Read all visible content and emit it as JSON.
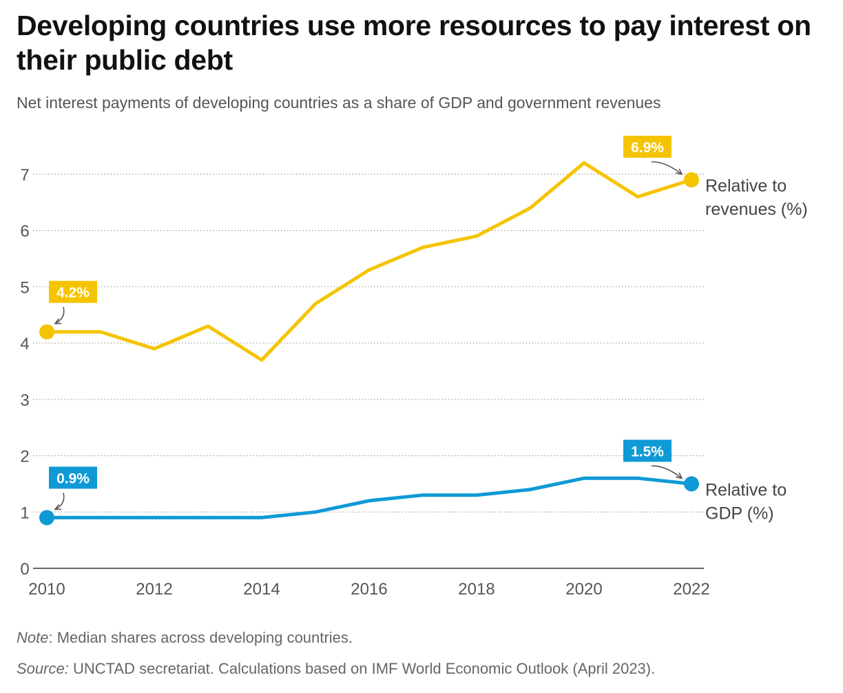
{
  "title": "Developing countries use more resources to pay interest on their public debt",
  "subtitle": "Net interest payments of developing countries as a share of GDP and government revenues",
  "note": {
    "label": "Note",
    "text": ": Median shares across developing countries."
  },
  "source": {
    "label": "Source:",
    "text": " UNCTAD secretariat. Calculations based on IMF World Economic Outlook (April 2023)."
  },
  "chart_data": {
    "type": "line",
    "x": [
      2010,
      2011,
      2012,
      2013,
      2014,
      2015,
      2016,
      2017,
      2018,
      2019,
      2020,
      2021,
      2022
    ],
    "x_ticks": [
      "2010",
      "2012",
      "2014",
      "2016",
      "2018",
      "2020",
      "2022"
    ],
    "y_ticks": [
      "0",
      "1",
      "2",
      "3",
      "4",
      "5",
      "6",
      "7"
    ],
    "xlim": [
      2010,
      2022
    ],
    "ylim": [
      0,
      7.5
    ],
    "grid": "horizontal dotted",
    "series": [
      {
        "name": "Relative to revenues (%)",
        "label_lines": [
          "Relative to",
          "revenues (%)"
        ],
        "color": "#f5c400",
        "values": [
          4.2,
          4.2,
          3.9,
          4.3,
          3.7,
          4.7,
          5.3,
          5.7,
          5.9,
          6.4,
          7.2,
          6.6,
          6.9
        ],
        "start_callout": "4.2%",
        "end_callout": "6.9%"
      },
      {
        "name": "Relative to GDP (%)",
        "label_lines": [
          "Relative to",
          "GDP (%)"
        ],
        "color": "#0f9ad6",
        "values": [
          0.9,
          0.9,
          0.9,
          0.9,
          0.9,
          1.0,
          1.2,
          1.3,
          1.3,
          1.4,
          1.6,
          1.6,
          1.5
        ],
        "start_callout": "0.9%",
        "end_callout": "1.5%"
      }
    ]
  }
}
